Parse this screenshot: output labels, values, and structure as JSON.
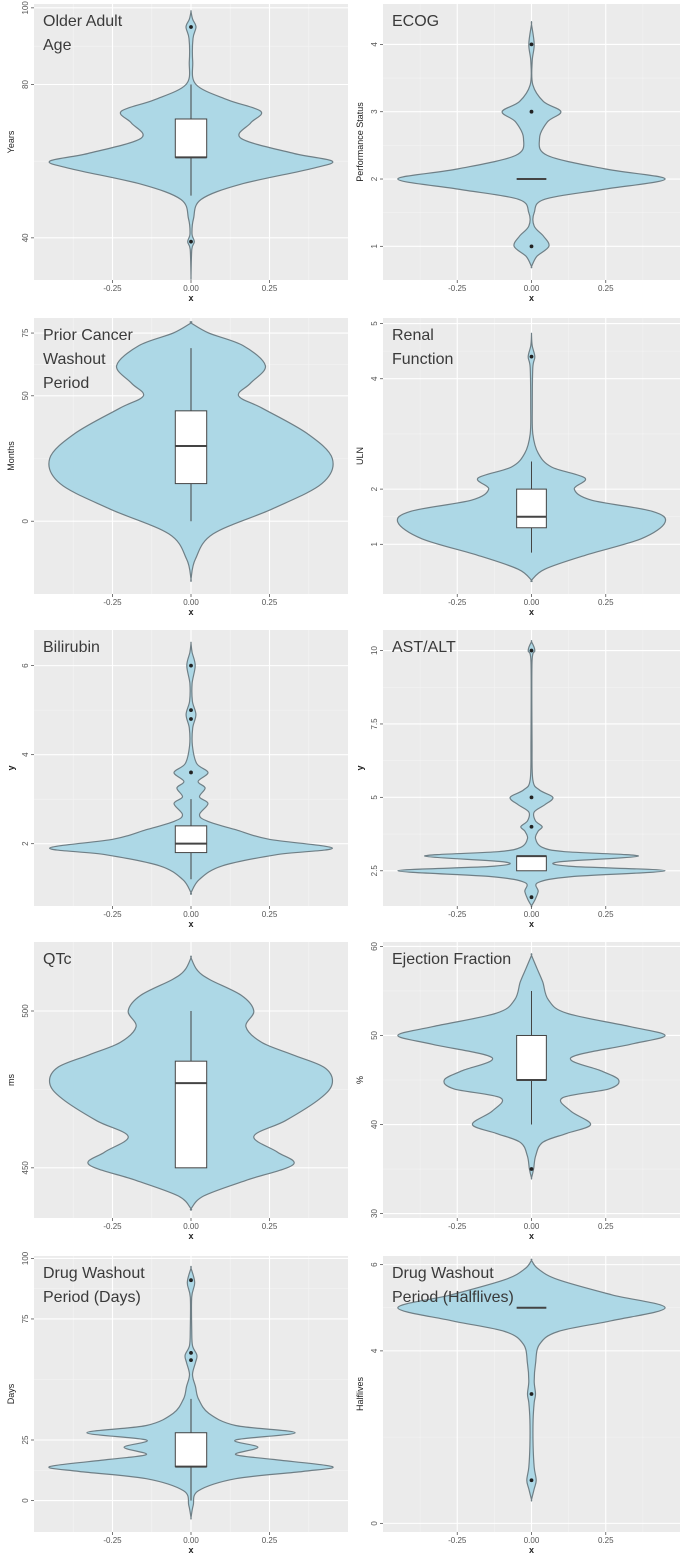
{
  "chart_data": [
    {
      "type": "violin",
      "title": "Older Adult\nAge",
      "xlabel": "x",
      "ylabel": "Years",
      "xticks": [
        "-0.25",
        "0.00",
        "0.25"
      ],
      "yticks": [
        40,
        80,
        100
      ],
      "ylim": [
        29,
        101
      ],
      "box": {
        "q1": 61,
        "median": 61,
        "q3": 71,
        "whisker_low": 51,
        "whisker_high": 80
      },
      "outliers": [
        39,
        95
      ],
      "density": [
        [
          30,
          0
        ],
        [
          37,
          0.005
        ],
        [
          39,
          0.02
        ],
        [
          41,
          0.006
        ],
        [
          45,
          0.015
        ],
        [
          50,
          0.06
        ],
        [
          54,
          0.3
        ],
        [
          58,
          0.72
        ],
        [
          60,
          0.85
        ],
        [
          62,
          0.62
        ],
        [
          66,
          0.3
        ],
        [
          70,
          0.36
        ],
        [
          73,
          0.42
        ],
        [
          76,
          0.22
        ],
        [
          80,
          0.03
        ],
        [
          86,
          0.01
        ],
        [
          92,
          0.012
        ],
        [
          95,
          0.03
        ],
        [
          97,
          0.01
        ],
        [
          99,
          0
        ]
      ]
    },
    {
      "type": "violin",
      "title": "ECOG",
      "xlabel": "x",
      "ylabel": "Performance Status",
      "xticks": [
        "-0.25",
        "0.00",
        "0.25"
      ],
      "yticks": [
        1,
        2,
        3,
        4
      ],
      "ylim": [
        0.5,
        4.6
      ],
      "box": {
        "q1": 2,
        "median": 2,
        "q3": 2,
        "whisker_low": 2,
        "whisker_high": 2
      },
      "outliers": [
        1,
        3,
        4
      ],
      "density": [
        [
          0.7,
          0
        ],
        [
          0.85,
          0.04
        ],
        [
          1.0,
          0.13
        ],
        [
          1.15,
          0.09
        ],
        [
          1.3,
          0.02
        ],
        [
          1.5,
          0.02
        ],
        [
          1.7,
          0.1
        ],
        [
          1.85,
          0.55
        ],
        [
          2.0,
          1.0
        ],
        [
          2.15,
          0.55
        ],
        [
          2.35,
          0.12
        ],
        [
          2.6,
          0.06
        ],
        [
          2.85,
          0.12
        ],
        [
          3.0,
          0.22
        ],
        [
          3.15,
          0.09
        ],
        [
          3.4,
          0.01
        ],
        [
          3.75,
          0.005
        ],
        [
          4.0,
          0.02
        ],
        [
          4.3,
          0
        ]
      ]
    },
    {
      "type": "violin",
      "title": "Prior Cancer\nWashout\nPeriod",
      "xlabel": "x",
      "ylabel": "Months",
      "xticks": [
        "-0.25",
        "0.00",
        "0.25"
      ],
      "yticks": [
        0,
        50,
        75
      ],
      "ylim": [
        -29,
        81
      ],
      "box": {
        "q1": 15,
        "median": 30,
        "q3": 44,
        "whisker_low": 0,
        "whisker_high": 69
      },
      "outliers": [],
      "density": [
        [
          -23,
          0
        ],
        [
          -15,
          0.03
        ],
        [
          -5,
          0.15
        ],
        [
          5,
          0.55
        ],
        [
          15,
          0.88
        ],
        [
          25,
          0.95
        ],
        [
          35,
          0.78
        ],
        [
          45,
          0.48
        ],
        [
          50,
          0.32
        ],
        [
          55,
          0.4
        ],
        [
          62,
          0.5
        ],
        [
          70,
          0.35
        ],
        [
          75,
          0.12
        ],
        [
          79,
          0
        ]
      ]
    },
    {
      "type": "violin",
      "title": "Renal\nFunction",
      "xlabel": "x",
      "ylabel": "ULN",
      "xticks": [
        "-0.25",
        "0.00",
        "0.25"
      ],
      "yticks": [
        1,
        2,
        4,
        5
      ],
      "ylim": [
        0.1,
        5.1
      ],
      "box": {
        "q1": 1.3,
        "median": 1.5,
        "q3": 2.0,
        "whisker_low": 0.85,
        "whisker_high": 2.5
      },
      "outliers": [
        4.4
      ],
      "density": [
        [
          0.35,
          0
        ],
        [
          0.55,
          0.1
        ],
        [
          0.8,
          0.4
        ],
        [
          1.1,
          0.82
        ],
        [
          1.4,
          1.0
        ],
        [
          1.6,
          0.9
        ],
        [
          1.8,
          0.45
        ],
        [
          2.0,
          0.32
        ],
        [
          2.2,
          0.4
        ],
        [
          2.4,
          0.15
        ],
        [
          2.65,
          0.05
        ],
        [
          3.0,
          0.01
        ],
        [
          3.5,
          0.006
        ],
        [
          4.2,
          0.01
        ],
        [
          4.4,
          0.025
        ],
        [
          4.6,
          0.005
        ],
        [
          4.8,
          0
        ]
      ]
    },
    {
      "type": "violin",
      "title": "Bilirubin",
      "xlabel": "x",
      "ylabel": "y",
      "xticks": [
        "-0.25",
        "0.00",
        "0.25"
      ],
      "yticks": [
        2,
        4,
        6
      ],
      "ylim": [
        0.6,
        6.8
      ],
      "box": {
        "q1": 1.8,
        "median": 2.0,
        "q3": 2.4,
        "whisker_low": 1.2,
        "whisker_high": 3.0
      },
      "outliers": [
        3.6,
        4.8,
        5.0,
        6.0
      ],
      "density": [
        [
          0.9,
          0
        ],
        [
          1.2,
          0.06
        ],
        [
          1.5,
          0.22
        ],
        [
          1.75,
          0.6
        ],
        [
          1.9,
          1.0
        ],
        [
          2.1,
          0.55
        ],
        [
          2.3,
          0.33
        ],
        [
          2.5,
          0.12
        ],
        [
          2.65,
          0.06
        ],
        [
          2.9,
          0.12
        ],
        [
          3.05,
          0.06
        ],
        [
          3.25,
          0.1
        ],
        [
          3.4,
          0.05
        ],
        [
          3.6,
          0.12
        ],
        [
          3.8,
          0.04
        ],
        [
          4.2,
          0.01
        ],
        [
          4.6,
          0.012
        ],
        [
          4.9,
          0.035
        ],
        [
          5.2,
          0.01
        ],
        [
          5.6,
          0.008
        ],
        [
          6.0,
          0.03
        ],
        [
          6.3,
          0.008
        ],
        [
          6.5,
          0
        ]
      ]
    },
    {
      "type": "violin",
      "title": "AST/ALT",
      "xlabel": "x",
      "ylabel": "y",
      "xticks": [
        "-0.25",
        "0.00",
        "0.25"
      ],
      "yticks": [
        2.5,
        5.0,
        7.5,
        10.0
      ],
      "ylim": [
        1.3,
        10.7
      ],
      "box": {
        "q1": 2.5,
        "median": 3.0,
        "q3": 3.0,
        "whisker_low": 2.5,
        "whisker_high": 3.0
      },
      "outliers": [
        1.6,
        4.0,
        5.0,
        10.0
      ],
      "density": [
        [
          1.3,
          0
        ],
        [
          1.55,
          0.03
        ],
        [
          1.8,
          0.05
        ],
        [
          2.1,
          0.05
        ],
        [
          2.3,
          0.3
        ],
        [
          2.5,
          1.0
        ],
        [
          2.65,
          0.3
        ],
        [
          2.8,
          0.2
        ],
        [
          3.0,
          0.8
        ],
        [
          3.15,
          0.25
        ],
        [
          3.3,
          0.08
        ],
        [
          3.6,
          0.03
        ],
        [
          3.85,
          0.05
        ],
        [
          4.0,
          0.08
        ],
        [
          4.2,
          0.03
        ],
        [
          4.5,
          0.02
        ],
        [
          4.75,
          0.1
        ],
        [
          5.0,
          0.16
        ],
        [
          5.25,
          0.06
        ],
        [
          5.6,
          0.01
        ],
        [
          7.0,
          0.004
        ],
        [
          9.6,
          0.004
        ],
        [
          10.0,
          0.025
        ],
        [
          10.3,
          0
        ]
      ]
    },
    {
      "type": "violin",
      "title": "QTc",
      "xlabel": "x",
      "ylabel": "ms",
      "xticks": [
        "-0.25",
        "0.00",
        "0.25"
      ],
      "yticks": [
        450,
        500
      ],
      "ylim": [
        434,
        522
      ],
      "box": {
        "q1": 450,
        "median": 477,
        "q3": 484,
        "whisker_low": 450,
        "whisker_high": 500
      },
      "outliers": [],
      "density": [
        [
          437,
          0
        ],
        [
          441,
          0.08
        ],
        [
          446,
          0.35
        ],
        [
          451,
          0.65
        ],
        [
          455,
          0.55
        ],
        [
          460,
          0.4
        ],
        [
          465,
          0.6
        ],
        [
          472,
          0.82
        ],
        [
          477,
          0.9
        ],
        [
          482,
          0.85
        ],
        [
          486,
          0.65
        ],
        [
          490,
          0.45
        ],
        [
          495,
          0.35
        ],
        [
          500,
          0.4
        ],
        [
          505,
          0.32
        ],
        [
          510,
          0.12
        ],
        [
          513,
          0.04
        ],
        [
          517,
          0
        ]
      ]
    },
    {
      "type": "violin",
      "title": "Ejection Fraction",
      "xlabel": "x",
      "ylabel": "%",
      "xticks": [
        "-0.25",
        "0.00",
        "0.25"
      ],
      "yticks": [
        30,
        40,
        50,
        60
      ],
      "ylim": [
        29.5,
        60.5
      ],
      "box": {
        "q1": 45,
        "median": 45,
        "q3": 50,
        "whisker_low": 40,
        "whisker_high": 55
      },
      "outliers": [
        35
      ],
      "density": [
        [
          34,
          0
        ],
        [
          35,
          0.015
        ],
        [
          36.5,
          0.03
        ],
        [
          38,
          0.08
        ],
        [
          39,
          0.25
        ],
        [
          40,
          0.42
        ],
        [
          41.5,
          0.28
        ],
        [
          43,
          0.22
        ],
        [
          44,
          0.55
        ],
        [
          45,
          0.62
        ],
        [
          46,
          0.5
        ],
        [
          47.5,
          0.28
        ],
        [
          49,
          0.7
        ],
        [
          50,
          0.95
        ],
        [
          51,
          0.7
        ],
        [
          52.5,
          0.25
        ],
        [
          54,
          0.12
        ],
        [
          56,
          0.08
        ],
        [
          57.5,
          0.04
        ],
        [
          59,
          0
        ]
      ]
    },
    {
      "type": "violin",
      "title": "Drug Washout\nPeriod (Days)",
      "xlabel": "x",
      "ylabel": "Days",
      "xticks": [
        "-0.25",
        "0.00",
        "0.25"
      ],
      "yticks": [
        0,
        25,
        75,
        100
      ],
      "ylim": [
        -13,
        101
      ],
      "box": {
        "q1": 14,
        "median": 14,
        "q3": 28,
        "whisker_low": 0,
        "whisker_high": 42
      },
      "outliers": [
        58,
        61,
        91
      ],
      "density": [
        [
          -7,
          0
        ],
        [
          -2,
          0.015
        ],
        [
          4,
          0.05
        ],
        [
          9,
          0.3
        ],
        [
          12,
          0.75
        ],
        [
          14,
          0.95
        ],
        [
          17,
          0.55
        ],
        [
          19,
          0.3
        ],
        [
          22,
          0.45
        ],
        [
          25,
          0.3
        ],
        [
          28,
          0.7
        ],
        [
          31,
          0.3
        ],
        [
          36,
          0.12
        ],
        [
          42,
          0.05
        ],
        [
          47,
          0.03
        ],
        [
          52,
          0.01
        ],
        [
          57,
          0.03
        ],
        [
          60,
          0.04
        ],
        [
          64,
          0.01
        ],
        [
          71,
          0.005
        ],
        [
          84,
          0.005
        ],
        [
          90,
          0.025
        ],
        [
          96,
          0
        ]
      ]
    },
    {
      "type": "violin",
      "title": "Drug Washout\nPeriod (Halflives)",
      "xlabel": "x",
      "ylabel": "Halflives",
      "xticks": [
        "-0.25",
        "0.00",
        "0.25"
      ],
      "yticks": [
        0,
        4,
        6
      ],
      "ylim": [
        -0.2,
        6.2
      ],
      "box": {
        "q1": 5,
        "median": 5,
        "q3": 5,
        "whisker_low": 5,
        "whisker_high": 5
      },
      "outliers": [
        1,
        3
      ],
      "density": [
        [
          0.55,
          0
        ],
        [
          0.8,
          0.02
        ],
        [
          1.0,
          0.035
        ],
        [
          1.3,
          0.02
        ],
        [
          1.8,
          0.012
        ],
        [
          2.4,
          0.012
        ],
        [
          2.8,
          0.02
        ],
        [
          3.0,
          0.03
        ],
        [
          3.3,
          0.02
        ],
        [
          3.7,
          0.03
        ],
        [
          4.15,
          0.06
        ],
        [
          4.45,
          0.2
        ],
        [
          4.7,
          0.6
        ],
        [
          5.0,
          1.0
        ],
        [
          5.3,
          0.6
        ],
        [
          5.65,
          0.2
        ],
        [
          5.9,
          0.05
        ],
        [
          6.1,
          0
        ]
      ]
    }
  ]
}
